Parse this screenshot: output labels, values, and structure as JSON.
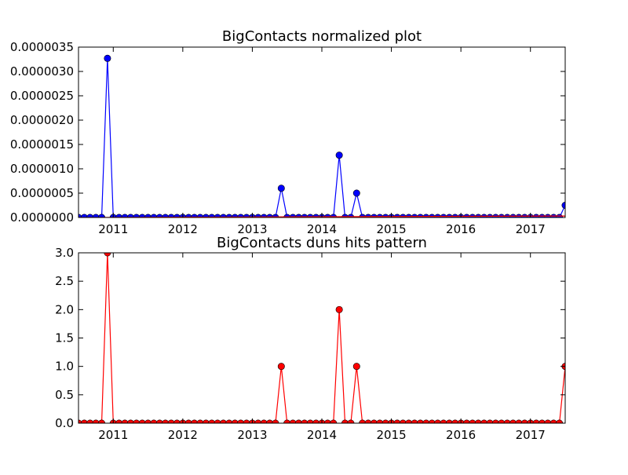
{
  "chart_data": [
    {
      "type": "line",
      "title": "BigContacts normalized plot",
      "xlabel": "",
      "ylabel": "",
      "xlim": [
        "2010-07",
        "2017-07"
      ],
      "ylim": [
        0,
        3.5e-06
      ],
      "x_ticks": [
        "2011",
        "2012",
        "2013",
        "2014",
        "2015",
        "2016",
        "2017"
      ],
      "y_ticks": [
        "0.0000000",
        "0.0000005",
        "0.0000010",
        "0.0000015",
        "0.0000020",
        "0.0000025",
        "0.0000030",
        "0.0000035"
      ],
      "grid": false,
      "series": [
        {
          "color": "#0000ff",
          "marker": "circle",
          "x": [
            "2010-07",
            "2010-08",
            "2010-09",
            "2010-10",
            "2010-11",
            "2010-12",
            "2011-01",
            "2011-02",
            "2011-03",
            "2011-04",
            "2011-05",
            "2011-06",
            "2011-07",
            "2011-08",
            "2011-09",
            "2011-10",
            "2011-11",
            "2011-12",
            "2012-01",
            "2012-02",
            "2012-03",
            "2012-04",
            "2012-05",
            "2012-06",
            "2012-07",
            "2012-08",
            "2012-09",
            "2012-10",
            "2012-11",
            "2012-12",
            "2013-01",
            "2013-02",
            "2013-03",
            "2013-04",
            "2013-05",
            "2013-06",
            "2013-07",
            "2013-08",
            "2013-09",
            "2013-10",
            "2013-11",
            "2013-12",
            "2014-01",
            "2014-02",
            "2014-03",
            "2014-04",
            "2014-05",
            "2014-06",
            "2014-07",
            "2014-08",
            "2014-09",
            "2014-10",
            "2014-11",
            "2014-12",
            "2015-01",
            "2015-02",
            "2015-03",
            "2015-04",
            "2015-05",
            "2015-06",
            "2015-07",
            "2015-08",
            "2015-09",
            "2015-10",
            "2015-11",
            "2015-12",
            "2016-01",
            "2016-02",
            "2016-03",
            "2016-04",
            "2016-05",
            "2016-06",
            "2016-07",
            "2016-08",
            "2016-09",
            "2016-10",
            "2016-11",
            "2016-12",
            "2017-01",
            "2017-02",
            "2017-03",
            "2017-04",
            "2017-05",
            "2017-06",
            "2017-07"
          ],
          "y": [
            0,
            0,
            0,
            0,
            0,
            3.27e-06,
            0,
            0,
            0,
            0,
            0,
            0,
            0,
            0,
            0,
            0,
            0,
            0,
            0,
            0,
            0,
            0,
            0,
            0,
            0,
            0,
            0,
            0,
            0,
            0,
            0,
            0,
            0,
            0,
            0,
            6e-07,
            0,
            0,
            0,
            0,
            0,
            0,
            0,
            0,
            0,
            1.28e-06,
            0,
            0,
            5e-07,
            0,
            0,
            0,
            0,
            0,
            0,
            0,
            0,
            0,
            0,
            0,
            0,
            0,
            0,
            0,
            0,
            0,
            0,
            0,
            0,
            0,
            0,
            0,
            0,
            0,
            0,
            0,
            0,
            0,
            0,
            0,
            0,
            0,
            0,
            0,
            2.5e-07
          ]
        },
        {
          "color": "#ff0000",
          "marker": "none",
          "x": [
            "2010-07",
            "2017-07"
          ],
          "y": [
            0,
            3e-08
          ]
        }
      ]
    },
    {
      "type": "line",
      "title": "BigContacts duns hits pattern",
      "xlabel": "",
      "ylabel": "",
      "xlim": [
        "2010-07",
        "2017-07"
      ],
      "ylim": [
        0,
        3.0
      ],
      "x_ticks": [
        "2011",
        "2012",
        "2013",
        "2014",
        "2015",
        "2016",
        "2017"
      ],
      "y_ticks": [
        "0.0",
        "0.5",
        "1.0",
        "1.5",
        "2.0",
        "2.5",
        "3.0"
      ],
      "grid": false,
      "series": [
        {
          "color": "#ff0000",
          "marker": "circle",
          "x": [
            "2010-07",
            "2010-08",
            "2010-09",
            "2010-10",
            "2010-11",
            "2010-12",
            "2011-01",
            "2011-02",
            "2011-03",
            "2011-04",
            "2011-05",
            "2011-06",
            "2011-07",
            "2011-08",
            "2011-09",
            "2011-10",
            "2011-11",
            "2011-12",
            "2012-01",
            "2012-02",
            "2012-03",
            "2012-04",
            "2012-05",
            "2012-06",
            "2012-07",
            "2012-08",
            "2012-09",
            "2012-10",
            "2012-11",
            "2012-12",
            "2013-01",
            "2013-02",
            "2013-03",
            "2013-04",
            "2013-05",
            "2013-06",
            "2013-07",
            "2013-08",
            "2013-09",
            "2013-10",
            "2013-11",
            "2013-12",
            "2014-01",
            "2014-02",
            "2014-03",
            "2014-04",
            "2014-05",
            "2014-06",
            "2014-07",
            "2014-08",
            "2014-09",
            "2014-10",
            "2014-11",
            "2014-12",
            "2015-01",
            "2015-02",
            "2015-03",
            "2015-04",
            "2015-05",
            "2015-06",
            "2015-07",
            "2015-08",
            "2015-09",
            "2015-10",
            "2015-11",
            "2015-12",
            "2016-01",
            "2016-02",
            "2016-03",
            "2016-04",
            "2016-05",
            "2016-06",
            "2016-07",
            "2016-08",
            "2016-09",
            "2016-10",
            "2016-11",
            "2016-12",
            "2017-01",
            "2017-02",
            "2017-03",
            "2017-04",
            "2017-05",
            "2017-06",
            "2017-07"
          ],
          "y": [
            0,
            0,
            0,
            0,
            0,
            3,
            0,
            0,
            0,
            0,
            0,
            0,
            0,
            0,
            0,
            0,
            0,
            0,
            0,
            0,
            0,
            0,
            0,
            0,
            0,
            0,
            0,
            0,
            0,
            0,
            0,
            0,
            0,
            0,
            0,
            1,
            0,
            0,
            0,
            0,
            0,
            0,
            0,
            0,
            0,
            2,
            0,
            0,
            1,
            0,
            0,
            0,
            0,
            0,
            0,
            0,
            0,
            0,
            0,
            0,
            0,
            0,
            0,
            0,
            0,
            0,
            0,
            0,
            0,
            0,
            0,
            0,
            0,
            0,
            0,
            0,
            0,
            0,
            0,
            0,
            0,
            0,
            0,
            0,
            1
          ]
        }
      ]
    }
  ]
}
